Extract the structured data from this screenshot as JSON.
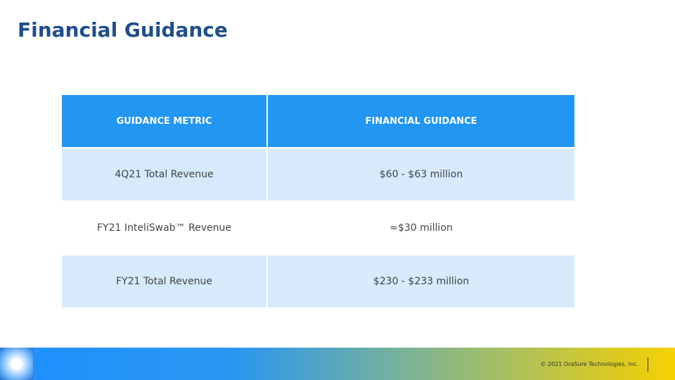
{
  "header": {
    "title": "Financial Guidance"
  },
  "table": {
    "columns": [
      "GUIDANCE METRIC",
      "FINANCIAL GUIDANCE"
    ],
    "rows": [
      [
        "4Q21 Total Revenue",
        "$60 - $63 million"
      ],
      [
        "FY21 InteliSwab™ Revenue",
        "≈$30 million"
      ],
      [
        "FY21 Total Revenue",
        "$230 - $233 million"
      ]
    ]
  },
  "footer": {
    "copyright": "© 2021 OraSure Technologies, Inc."
  }
}
